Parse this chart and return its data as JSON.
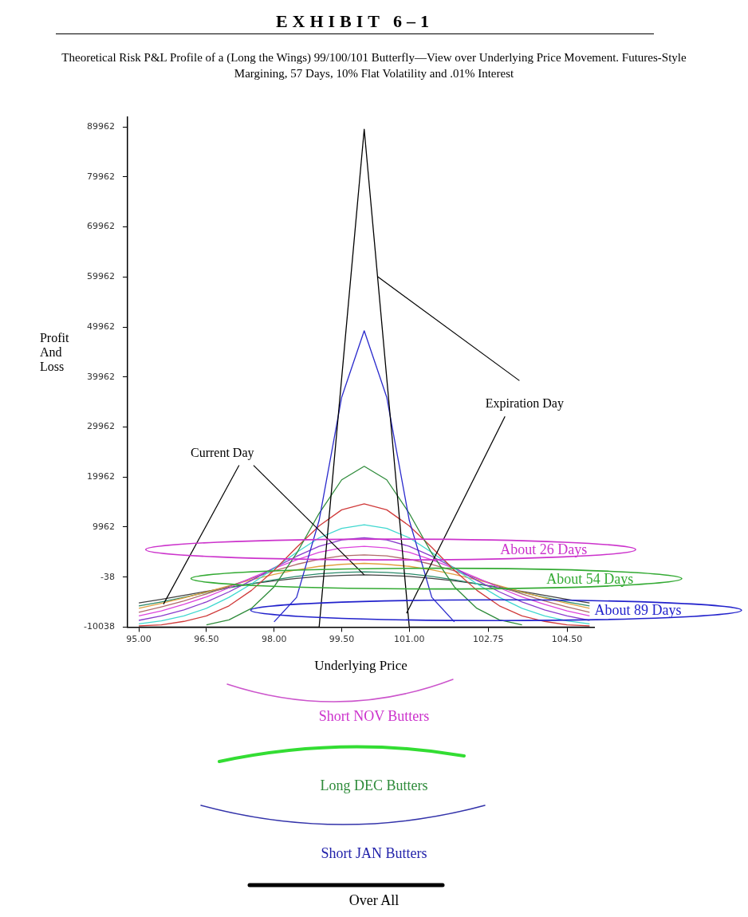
{
  "chart_data": {
    "type": "line",
    "title": "EXHIBIT 6–1",
    "subtitle": "Theoretical Risk P&L Profile of a (Long the Wings) 99/100/101 Butterfly—View over Underlying Price Movement.  Futures-Style Margining, 57 Days, 10% Flat Volatility and .01% Interest",
    "xlabel": "Underlying Price",
    "ylabel": "Profit And Loss",
    "x": [
      95,
      95.5,
      96,
      96.5,
      97,
      97.5,
      98,
      98.5,
      99,
      99.5,
      100,
      100.5,
      101,
      101.5,
      102,
      102.5,
      103,
      103.5,
      104,
      104.5,
      105
    ],
    "xlim": [
      94.75,
      105.1
    ],
    "xticks": [
      {
        "value": 95,
        "label": "95.00"
      },
      {
        "value": 96.5,
        "label": "96.50"
      },
      {
        "value": 98,
        "label": "98.00"
      },
      {
        "value": 99.5,
        "label": "99.50"
      },
      {
        "value": 101,
        "label": "101.00"
      },
      {
        "value": 102.75,
        "label": "102.75"
      },
      {
        "value": 104.5,
        "label": "104.50"
      }
    ],
    "ylim": [
      -10038,
      91962
    ],
    "yticks": [
      -10038,
      -38,
      9962,
      19962,
      29962,
      39962,
      49962,
      59962,
      69962,
      79962,
      89962
    ],
    "series": [
      {
        "color": "#000000",
        "x": [
          95,
          99,
          100,
          101,
          105
        ],
        "values": [
          -10038,
          -10038,
          89500,
          -10038,
          -10038
        ]
      },
      {
        "color": "#2a2acc",
        "values": [
          null,
          null,
          null,
          null,
          null,
          null,
          -9000,
          -4100,
          11300,
          35900,
          49200,
          35900,
          11300,
          -4100,
          -9000,
          null,
          null,
          null,
          null,
          null,
          null
        ]
      },
      {
        "color": "#2e8b3a",
        "values": [
          null,
          null,
          null,
          -9600,
          -8600,
          -6300,
          -2000,
          4700,
          12700,
          19400,
          22100,
          19400,
          12700,
          4700,
          -2000,
          -6300,
          -8600,
          -9600,
          null,
          null,
          null
        ]
      },
      {
        "color": "#d03a3a",
        "values": [
          -9800,
          -9600,
          -8900,
          -7800,
          -5800,
          -2700,
          1300,
          5900,
          10200,
          13400,
          14600,
          13400,
          10200,
          5900,
          1300,
          -2700,
          -5800,
          -7800,
          -8900,
          -9600,
          -9800
        ]
      },
      {
        "color": "#40d8d0",
        "values": [
          -9400,
          -8800,
          -7800,
          -6300,
          -4100,
          -1400,
          1700,
          4900,
          7800,
          9700,
          10400,
          9700,
          7800,
          4900,
          1700,
          -1400,
          -4100,
          -6300,
          -7800,
          -8800,
          -9400
        ]
      },
      {
        "color": "#8a3acc",
        "values": [
          -8700,
          -7800,
          -6600,
          -5000,
          -3000,
          -700,
          1800,
          4100,
          6100,
          7400,
          7800,
          7400,
          6100,
          4100,
          1800,
          -700,
          -3000,
          -5000,
          -6600,
          -7800,
          -8700
        ]
      },
      {
        "color": "#dd44dd",
        "values": [
          -7800,
          -6800,
          -5500,
          -4000,
          -2200,
          -200,
          1700,
          3400,
          4900,
          5800,
          6100,
          5800,
          4900,
          3400,
          1700,
          -200,
          -2200,
          -4000,
          -5500,
          -6800,
          -7800
        ]
      },
      {
        "color": "#b06a6a",
        "values": [
          -7100,
          -6000,
          -4800,
          -3400,
          -1900,
          -300,
          1200,
          2500,
          3500,
          4200,
          4400,
          4200,
          3500,
          2500,
          1200,
          -300,
          -1900,
          -3400,
          -4800,
          -6000,
          -7100
        ]
      },
      {
        "color": "#e0a040",
        "values": [
          -6300,
          -5300,
          -4200,
          -3000,
          -1800,
          -600,
          500,
          1400,
          2100,
          2500,
          2700,
          2500,
          2100,
          1400,
          500,
          -600,
          -1800,
          -3000,
          -4200,
          -5300,
          -6300
        ]
      },
      {
        "color": "#2a8a6a",
        "values": [
          -5800,
          -5000,
          -4100,
          -3100,
          -2200,
          -1400,
          -600,
          100,
          600,
          900,
          1000,
          900,
          600,
          100,
          -600,
          -1400,
          -2200,
          -3100,
          -4100,
          -5000,
          -5800
        ]
      },
      {
        "color": "#404040",
        "values": [
          -5200,
          -4500,
          -3700,
          -2900,
          -2100,
          -1400,
          -800,
          -300,
          100,
          300,
          400,
          300,
          100,
          -300,
          -800,
          -1400,
          -2100,
          -2900,
          -3700,
          -4500,
          -5200
        ]
      }
    ],
    "annotations": [
      {
        "text": "Current Day",
        "x": 100,
        "y": 400
      },
      {
        "text": "Expiration Day",
        "x": 100.3,
        "y": 60000
      },
      "About 26 Days",
      "About 54 Days",
      "About 89 Days",
      "Short NOV Butters",
      "Long DEC Butters",
      "Short JAN Butters",
      "Over All"
    ]
  }
}
